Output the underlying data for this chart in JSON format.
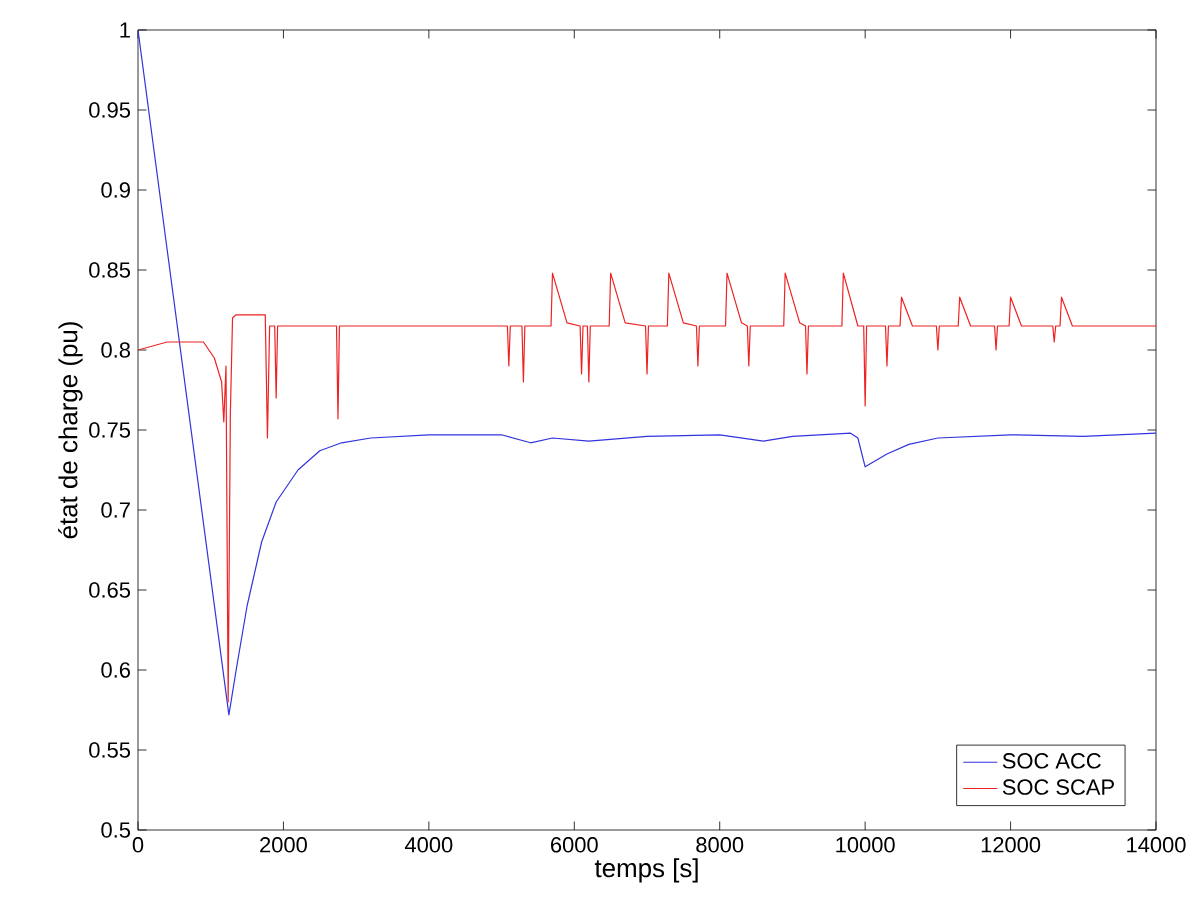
{
  "chart_data": {
    "type": "line",
    "xlabel": "temps [s]",
    "ylabel": "état de charge (pu)",
    "xlim": [
      0,
      14000
    ],
    "ylim": [
      0.5,
      1
    ],
    "xticks": [
      0,
      2000,
      4000,
      6000,
      8000,
      10000,
      12000,
      14000
    ],
    "yticks": [
      0.5,
      0.55,
      0.6,
      0.65,
      0.7,
      0.75,
      0.8,
      0.85,
      0.9,
      0.95,
      1
    ],
    "grid": false,
    "legend": "bottom right",
    "series": [
      {
        "name": "SOC ACC",
        "color": "#3333dd",
        "x": [
          0,
          1250,
          1350,
          1500,
          1700,
          1900,
          2200,
          2500,
          2800,
          3200,
          4000,
          5000,
          5400,
          5700,
          6200,
          7000,
          8000,
          8600,
          9000,
          9800,
          9900,
          10000,
          10300,
          10600,
          11000,
          12000,
          13000,
          14000
        ],
        "values": [
          1,
          0.572,
          0.6,
          0.64,
          0.68,
          0.705,
          0.725,
          0.737,
          0.742,
          0.745,
          0.747,
          0.747,
          0.742,
          0.745,
          0.743,
          0.746,
          0.747,
          0.743,
          0.746,
          0.748,
          0.745,
          0.727,
          0.735,
          0.741,
          0.745,
          0.747,
          0.746,
          0.748
        ]
      },
      {
        "name": "SOC SCAP",
        "color": "#ee2222",
        "x": [
          0,
          400,
          900,
          1050,
          1150,
          1180,
          1210,
          1240,
          1270,
          1300,
          1350,
          1750,
          1780,
          1810,
          1880,
          1900,
          1920,
          2730,
          2750,
          2770,
          5080,
          5100,
          5120,
          5280,
          5300,
          5320,
          5680,
          5700,
          5900,
          6080,
          6100,
          6120,
          6180,
          6200,
          6220,
          6480,
          6500,
          6700,
          6980,
          7000,
          7020,
          7280,
          7300,
          7500,
          7680,
          7700,
          7720,
          8080,
          8100,
          8300,
          8380,
          8400,
          8420,
          8880,
          8900,
          9100,
          9180,
          9200,
          9220,
          9680,
          9700,
          9900,
          9980,
          10000,
          10020,
          10280,
          10300,
          10320,
          10480,
          10500,
          10650,
          10980,
          11000,
          11020,
          11280,
          11300,
          11450,
          11780,
          11800,
          11820,
          11980,
          12000,
          12150,
          12580,
          12600,
          12620,
          12680,
          12700,
          12850,
          14000
        ],
        "values": [
          0.8,
          0.805,
          0.805,
          0.795,
          0.78,
          0.755,
          0.79,
          0.58,
          0.76,
          0.82,
          0.822,
          0.822,
          0.745,
          0.815,
          0.815,
          0.77,
          0.815,
          0.815,
          0.757,
          0.815,
          0.815,
          0.79,
          0.815,
          0.815,
          0.78,
          0.815,
          0.815,
          0.848,
          0.817,
          0.815,
          0.785,
          0.815,
          0.815,
          0.78,
          0.815,
          0.815,
          0.848,
          0.817,
          0.815,
          0.785,
          0.815,
          0.815,
          0.848,
          0.817,
          0.815,
          0.79,
          0.815,
          0.815,
          0.848,
          0.817,
          0.815,
          0.79,
          0.815,
          0.815,
          0.848,
          0.817,
          0.815,
          0.785,
          0.815,
          0.815,
          0.848,
          0.815,
          0.815,
          0.765,
          0.815,
          0.815,
          0.79,
          0.815,
          0.815,
          0.833,
          0.815,
          0.815,
          0.8,
          0.815,
          0.815,
          0.833,
          0.815,
          0.815,
          0.8,
          0.815,
          0.815,
          0.833,
          0.815,
          0.815,
          0.805,
          0.815,
          0.815,
          0.833,
          0.815,
          0.815
        ]
      }
    ]
  }
}
